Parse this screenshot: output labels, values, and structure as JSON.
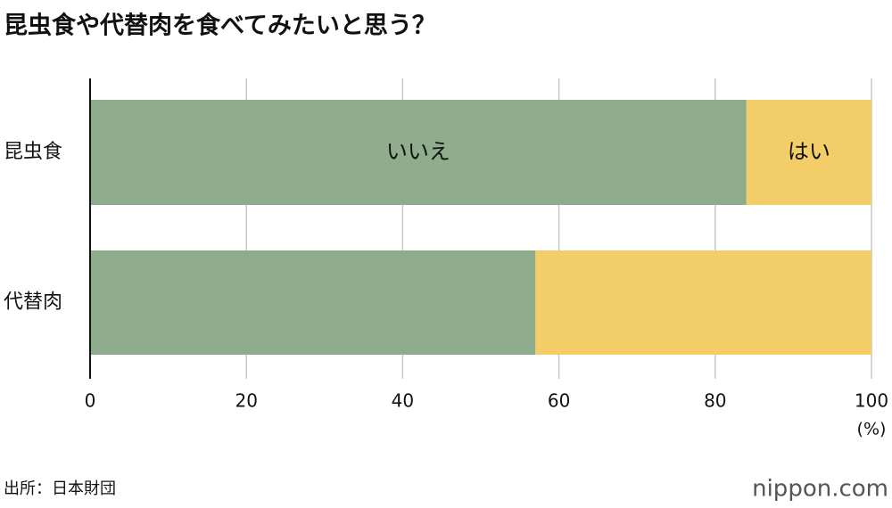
{
  "chart_data": {
    "type": "bar",
    "orientation": "horizontal",
    "stacked": true,
    "title": "昆虫食や代替肉を食べてみたいと思う？",
    "categories": [
      "昆虫食",
      "代替肉"
    ],
    "series": [
      {
        "name": "いいえ",
        "color": "#8fac8c",
        "values": [
          84,
          57
        ]
      },
      {
        "name": "はい",
        "color": "#f2cd68",
        "values": [
          16,
          43
        ]
      }
    ],
    "xlim": [
      0,
      100
    ],
    "xticks": [
      0,
      20,
      40,
      60,
      80,
      100
    ],
    "xlabel": "(%)",
    "grid": true,
    "source": "出所：日本財団",
    "logo": "nippon.com"
  }
}
